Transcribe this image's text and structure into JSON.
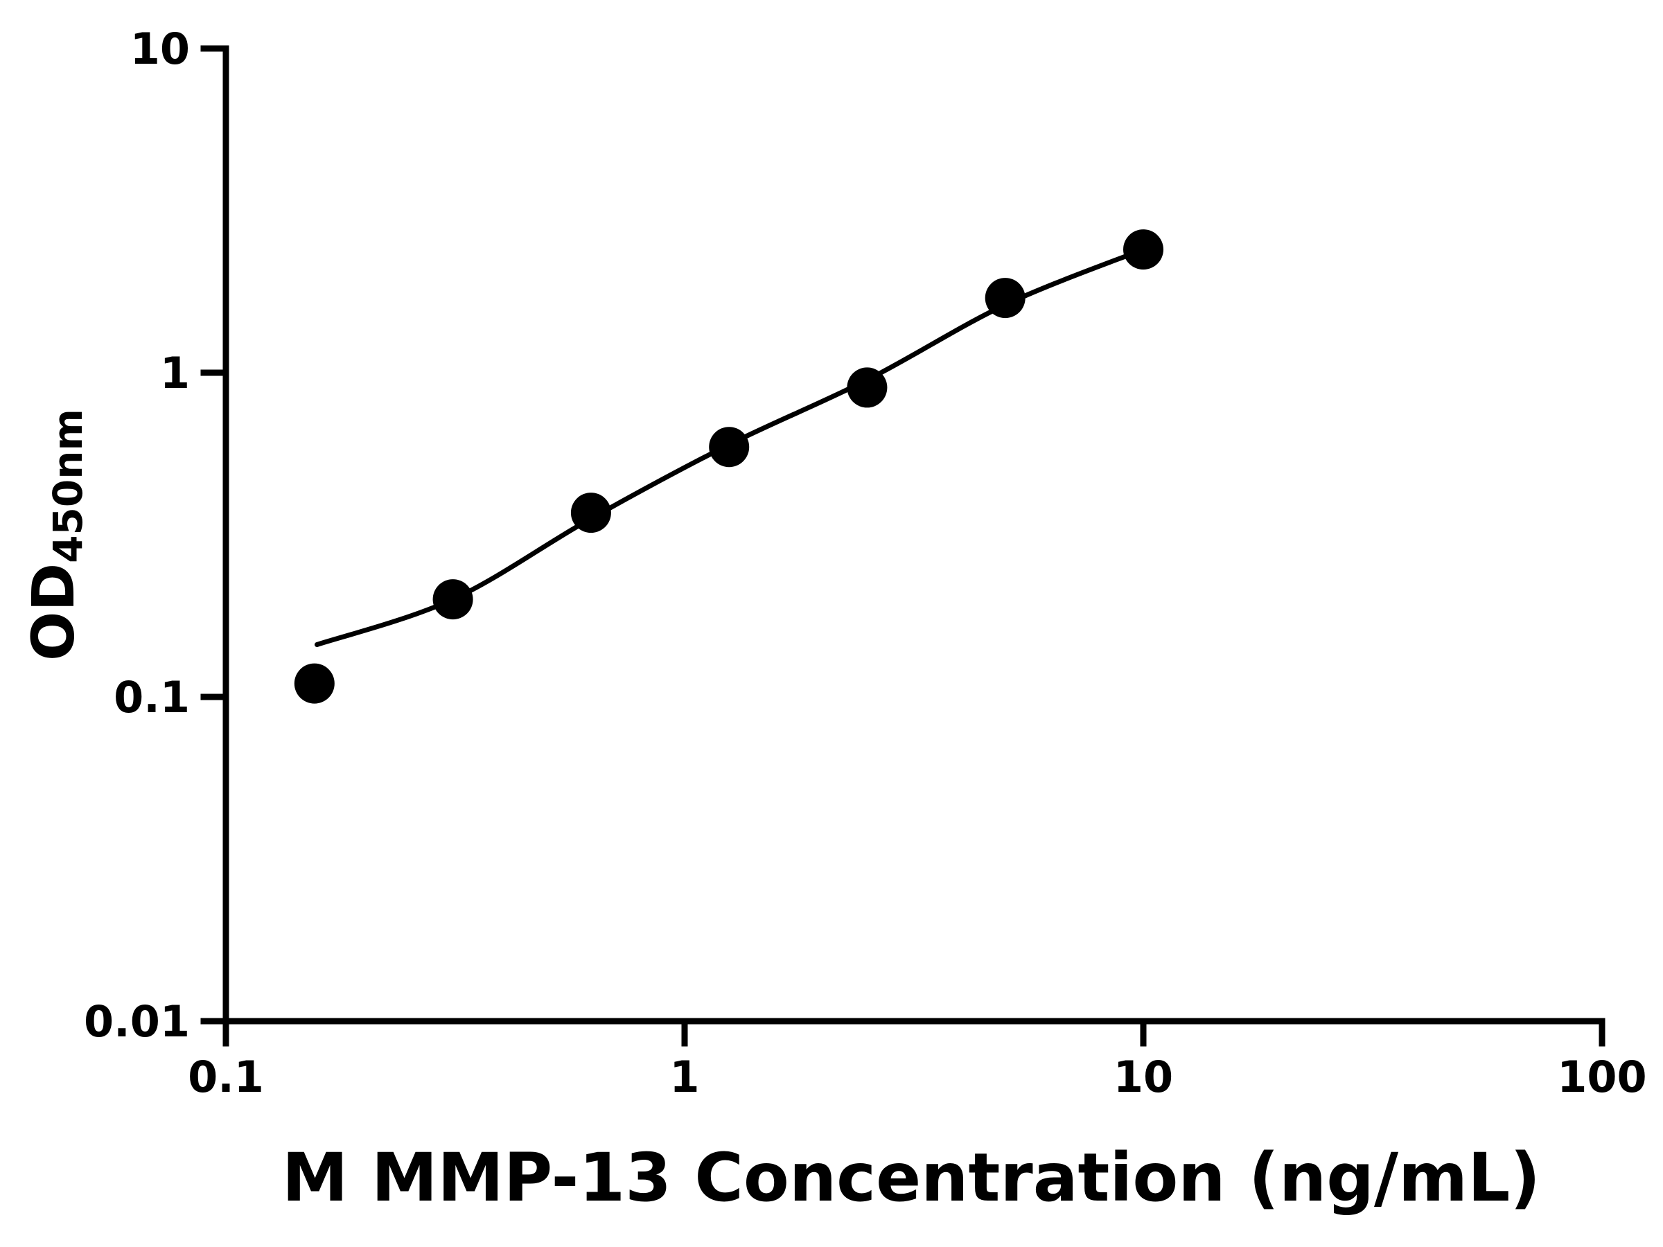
{
  "chart_data": {
    "type": "scatter",
    "title": "",
    "xlabel": "M MMP-13 Concentration (ng/mL)",
    "ylabel_main": "OD",
    "ylabel_sub": "450nm",
    "xscale": "log",
    "yscale": "log",
    "xlim": [
      0.1,
      100
    ],
    "ylim": [
      0.01,
      10
    ],
    "grid": false,
    "legend": false,
    "marker_color": "#000000",
    "line_color": "#000000",
    "x": [
      0.156,
      0.3125,
      0.625,
      1.25,
      2.5,
      5,
      10
    ],
    "y": [
      0.11,
      0.2,
      0.37,
      0.59,
      0.9,
      1.7,
      2.4
    ],
    "curve": [
      [
        0.158,
        0.145
      ],
      [
        0.3125,
        0.2
      ],
      [
        0.625,
        0.355
      ],
      [
        1.25,
        0.6
      ],
      [
        2.5,
        0.95
      ],
      [
        5,
        1.62
      ],
      [
        10,
        2.4
      ]
    ],
    "x_ticks": [
      {
        "label": "0.1",
        "value": 0.1
      },
      {
        "label": "1",
        "value": 1
      },
      {
        "label": "10",
        "value": 10
      },
      {
        "label": "100",
        "value": 100
      }
    ],
    "y_ticks": [
      {
        "label": "10",
        "value": 10
      },
      {
        "label": "1",
        "value": 1
      },
      {
        "label": "0.1",
        "value": 0.1
      },
      {
        "label": "0.01",
        "value": 0.01
      }
    ]
  }
}
